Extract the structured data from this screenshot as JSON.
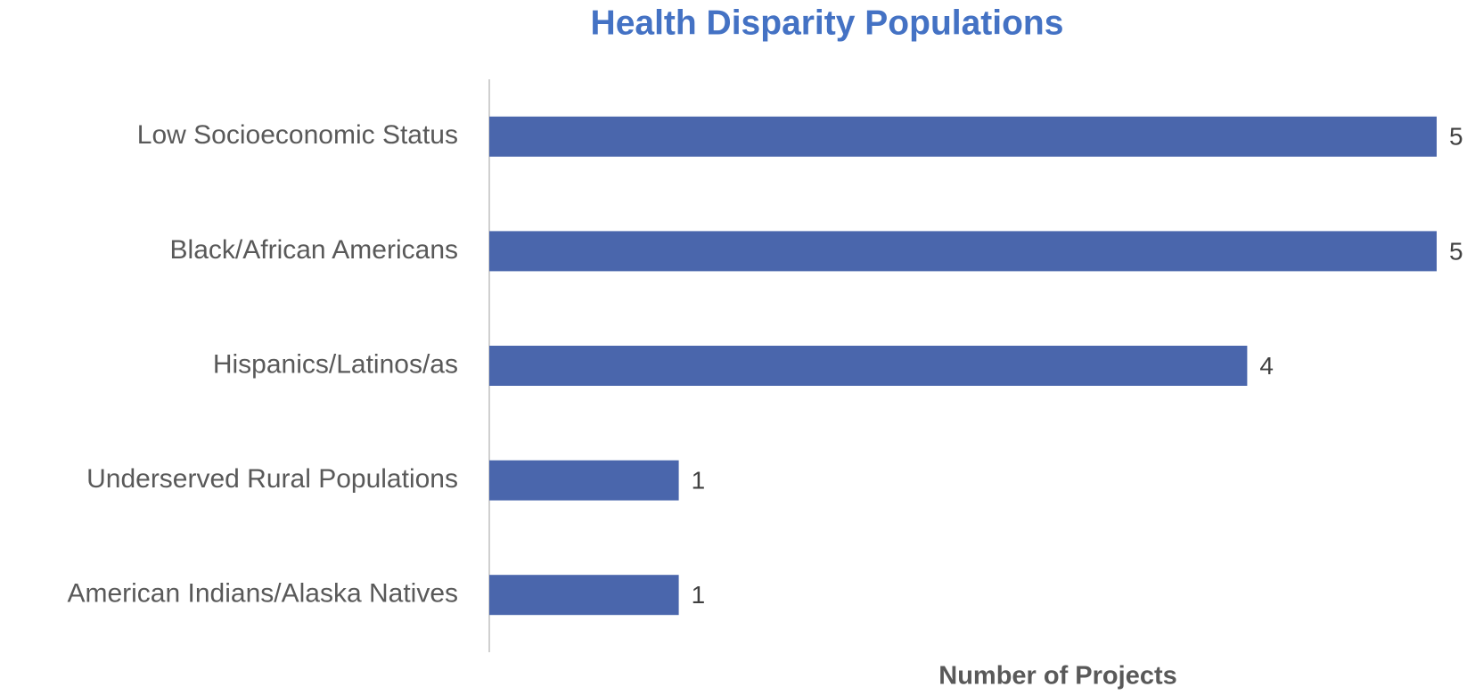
{
  "chart_data": {
    "type": "bar",
    "orientation": "horizontal",
    "title": "Health Disparity Populations",
    "x_label": "Number of Projects",
    "categories": [
      "Low Socioeconomic Status",
      "Black/African Americans",
      "Hispanics/Latinos/as",
      "Underserved Rural Populations",
      "American Indians/Alaska Natives"
    ],
    "values": [
      5,
      5,
      4,
      1,
      1
    ],
    "color": "#4a66ac",
    "xlim": [
      0,
      5
    ]
  }
}
